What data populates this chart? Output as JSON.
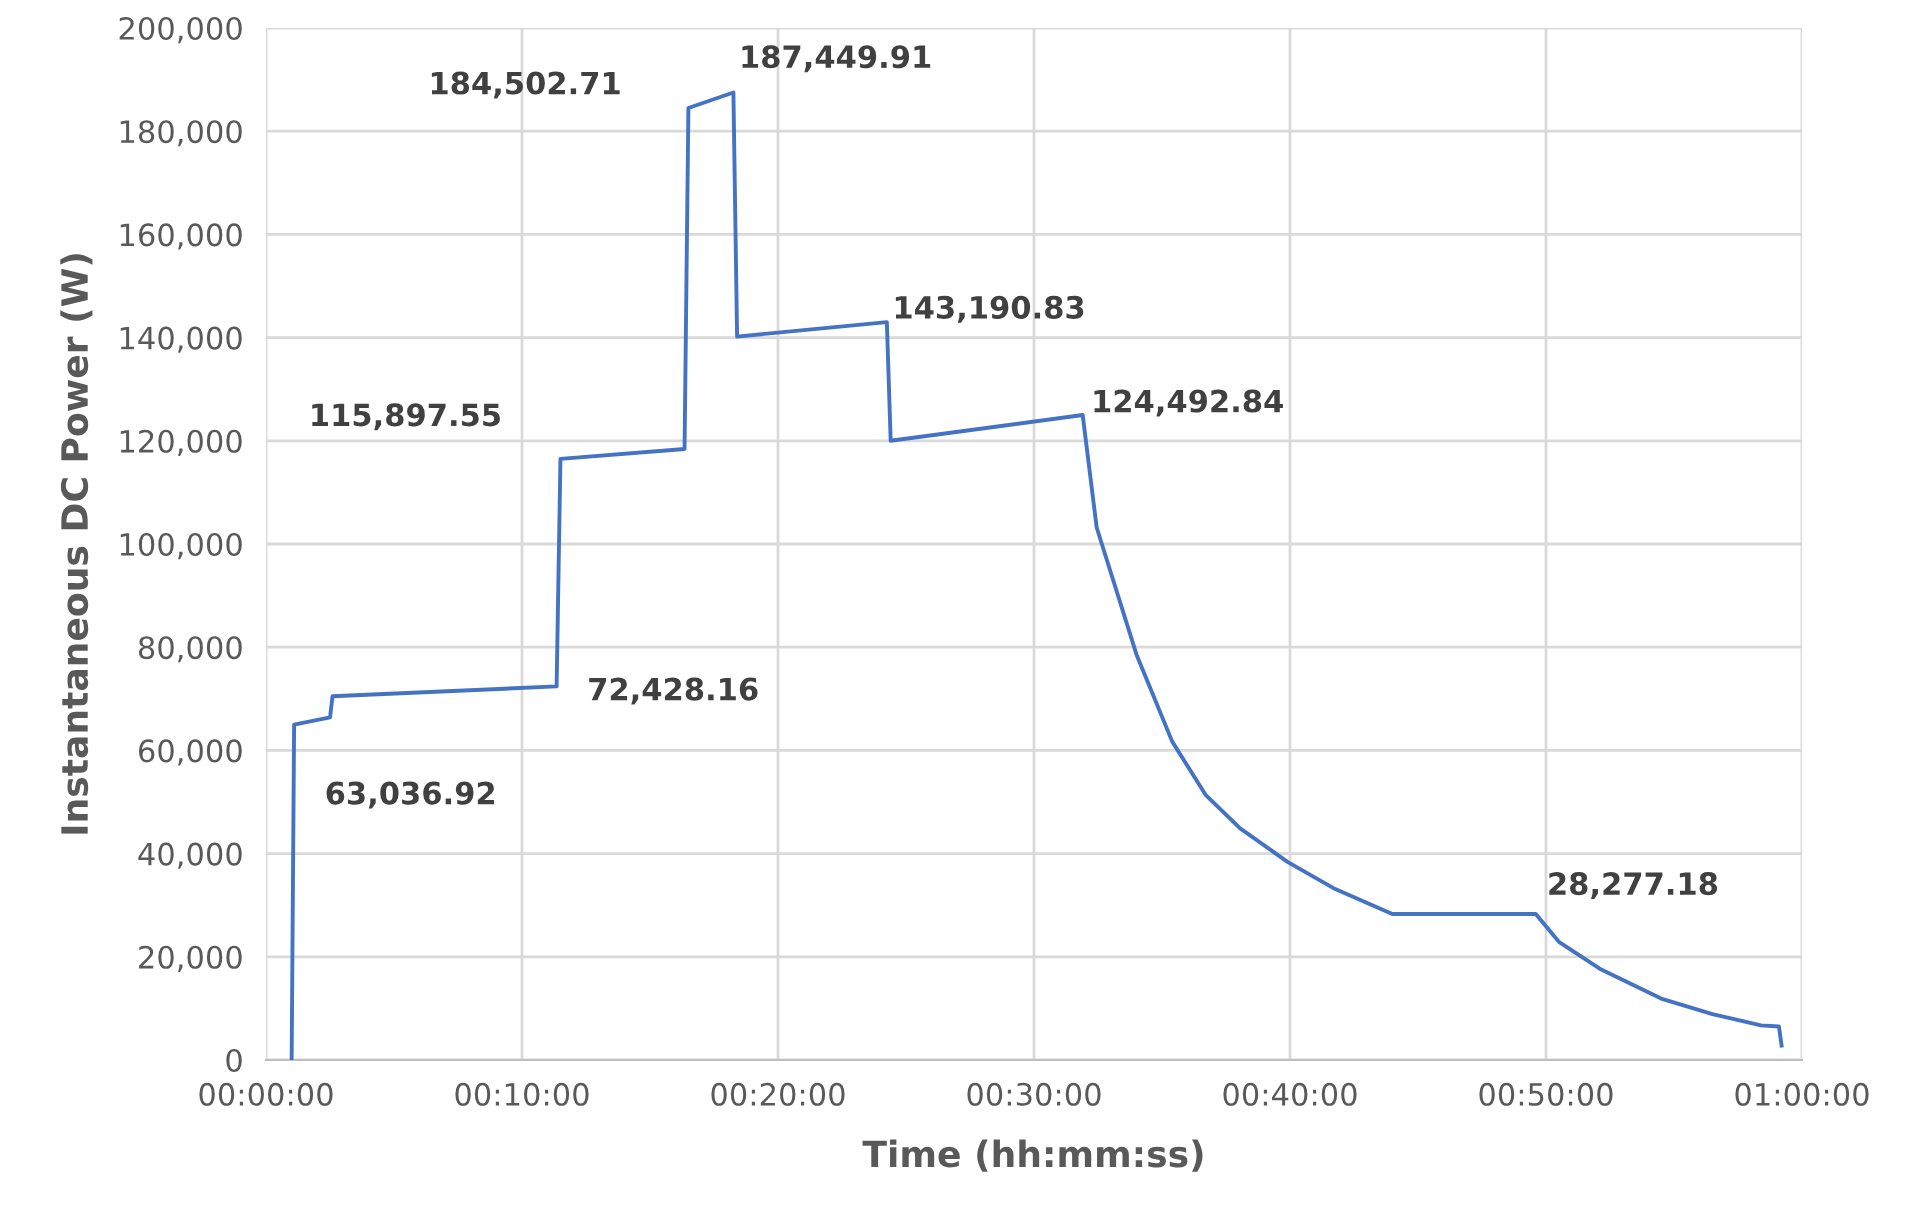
{
  "chart_data": {
    "type": "line",
    "xlabel": "Time (hh:mm:ss)",
    "ylabel": "Instantaneous DC Power (W)",
    "x": [
      0.0167,
      0.0183,
      0.0417,
      0.0433,
      0.1892,
      0.1917,
      0.2725,
      0.275,
      0.3043,
      0.3067,
      0.4042,
      0.4067,
      0.5317,
      0.5408,
      0.5667,
      0.59,
      0.6117,
      0.6342,
      0.665,
      0.695,
      0.7333,
      0.8267,
      0.8417,
      0.8683,
      0.9083,
      0.9417,
      0.9733,
      0.985,
      0.9867
    ],
    "series": [
      {
        "color": "#4472c4",
        "values": [
          0,
          65000,
          66400,
          70500,
          72400,
          116500,
          118400,
          184500,
          187500,
          140200,
          143000,
          120000,
          125000,
          103200,
          78600,
          61700,
          51400,
          44900,
          38400,
          33300,
          28300,
          28300,
          22900,
          17700,
          11900,
          8900,
          6700,
          6500,
          2800
        ]
      }
    ],
    "xlim": [
      0,
      1
    ],
    "xticks": [
      {
        "value": 0,
        "label": "00:00:00"
      },
      {
        "value": 0.16667,
        "label": "00:10:00"
      },
      {
        "value": 0.33333,
        "label": "00:20:00"
      },
      {
        "value": 0.5,
        "label": "00:30:00"
      },
      {
        "value": 0.66667,
        "label": "00:40:00"
      },
      {
        "value": 0.83333,
        "label": "00:50:00"
      },
      {
        "value": 1,
        "label": "01:00:00"
      }
    ],
    "ylim": [
      0,
      200000
    ],
    "yticks": [
      {
        "value": 0,
        "label": "0"
      },
      {
        "value": 20000,
        "label": "20,000"
      },
      {
        "value": 40000,
        "label": "40,000"
      },
      {
        "value": 60000,
        "label": "60,000"
      },
      {
        "value": 80000,
        "label": "80,000"
      },
      {
        "value": 100000,
        "label": "100,000"
      },
      {
        "value": 120000,
        "label": "120,000"
      },
      {
        "value": 140000,
        "label": "140,000"
      },
      {
        "value": 160000,
        "label": "160,000"
      },
      {
        "value": 180000,
        "label": "180,000"
      },
      {
        "value": 200000,
        "label": "200,000"
      }
    ],
    "grid": true,
    "legend": false,
    "marker": "none",
    "line_style": "solid",
    "annotations": [
      {
        "text": "63,036.92",
        "x": 0.0183,
        "y": 63036.92
      },
      {
        "text": "72,428.16",
        "x": 0.1892,
        "y": 72428.16
      },
      {
        "text": "115,897.55",
        "x": 0.1917,
        "y": 115897.55
      },
      {
        "text": "184,502.71",
        "x": 0.275,
        "y": 184502.71
      },
      {
        "text": "187,449.91",
        "x": 0.3043,
        "y": 187449.91
      },
      {
        "text": "143,190.83",
        "x": 0.4042,
        "y": 143190.83
      },
      {
        "text": "124,492.84",
        "x": 0.5317,
        "y": 124492.84
      },
      {
        "text": "28,277.18",
        "x": 0.8267,
        "y": 28277.18
      }
    ]
  }
}
